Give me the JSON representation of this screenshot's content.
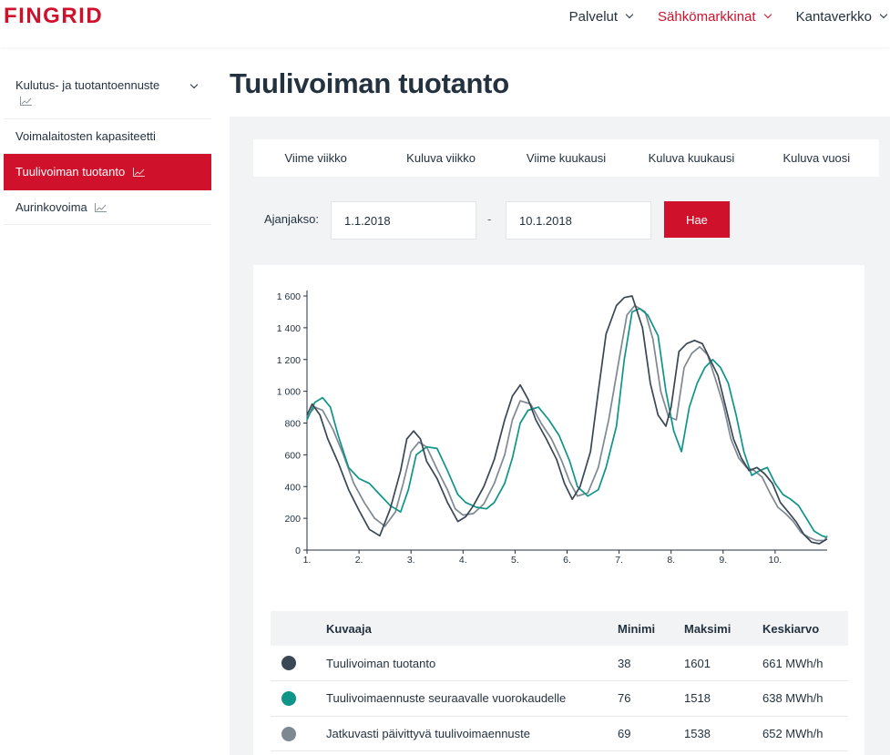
{
  "header": {
    "logo": "FINGRID",
    "nav": [
      {
        "label": "Palvelut",
        "active": false
      },
      {
        "label": "Sähkömarkkinat",
        "active": true
      },
      {
        "label": "Kantaverkko",
        "active": false
      }
    ]
  },
  "sidebar": {
    "items": [
      {
        "label": "Kulutus- ja tuotantoennuste",
        "icon": "trend-icon",
        "expandable": true
      },
      {
        "label": "Voimalaitosten kapasiteetti"
      },
      {
        "label": "Tuulivoiman tuotanto",
        "icon": "trend-icon",
        "active": true
      },
      {
        "label": "Aurinkovoima",
        "icon": "trend-icon"
      }
    ]
  },
  "page": {
    "title": "Tuulivoiman tuotanto"
  },
  "tabs": [
    "Viime viikko",
    "Kuluva viikko",
    "Viime kuukausi",
    "Kuluva kuukausi",
    "Kuluva vuosi"
  ],
  "period": {
    "label": "Ajanjakso:",
    "start": "1.1.2018",
    "end": "10.1.2018",
    "separator": "-",
    "button": "Hae"
  },
  "chart_data": {
    "type": "line",
    "x_unit": "days",
    "xlim": [
      1,
      11
    ],
    "ylim": [
      0,
      1600
    ],
    "yticks": [
      0,
      200,
      400,
      600,
      800,
      1000,
      1200,
      1400,
      1600
    ],
    "ytick_labels": [
      "0",
      "200",
      "400",
      "600",
      "800",
      "1 000",
      "1 200",
      "1 400",
      "1 600"
    ],
    "xticks": [
      1,
      2,
      3,
      4,
      5,
      6,
      7,
      8,
      9,
      10
    ],
    "xtick_labels": [
      "1.",
      "2.",
      "3.",
      "4.",
      "5.",
      "6.",
      "7.",
      "8.",
      "9.",
      "10."
    ],
    "grid": false,
    "series": [
      {
        "name": "Tuulivoiman tuotanto",
        "color": "#3a4754",
        "x": [
          1.0,
          1.1,
          1.25,
          1.4,
          1.6,
          1.8,
          2.0,
          2.2,
          2.4,
          2.6,
          2.8,
          2.92,
          3.05,
          3.18,
          3.3,
          3.5,
          3.7,
          3.9,
          4.05,
          4.2,
          4.4,
          4.6,
          4.8,
          4.95,
          5.1,
          5.25,
          5.4,
          5.6,
          5.8,
          5.95,
          6.1,
          6.25,
          6.45,
          6.6,
          6.75,
          6.95,
          7.1,
          7.25,
          7.45,
          7.6,
          7.75,
          7.9,
          8.0,
          8.15,
          8.3,
          8.45,
          8.6,
          8.75,
          8.9,
          9.05,
          9.2,
          9.35,
          9.5,
          9.65,
          9.8,
          9.95,
          10.1,
          10.25,
          10.4,
          10.55,
          10.7,
          10.85,
          11.0
        ],
        "values": [
          850,
          920,
          850,
          700,
          550,
          380,
          250,
          130,
          90,
          260,
          500,
          700,
          750,
          700,
          560,
          450,
          300,
          180,
          210,
          280,
          400,
          570,
          820,
          970,
          1040,
          950,
          820,
          700,
          570,
          420,
          320,
          400,
          620,
          1000,
          1360,
          1540,
          1590,
          1600,
          1400,
          1050,
          850,
          780,
          900,
          1250,
          1300,
          1320,
          1300,
          1200,
          1100,
          900,
          700,
          580,
          500,
          520,
          480,
          420,
          300,
          240,
          180,
          100,
          50,
          40,
          70
        ]
      },
      {
        "name": "Tuulivoimaennuste seuraavalle vuorokaudelle",
        "color": "#0f9488",
        "x": [
          1.0,
          1.15,
          1.3,
          1.45,
          1.6,
          1.8,
          2.0,
          2.2,
          2.4,
          2.6,
          2.8,
          2.95,
          3.1,
          3.3,
          3.5,
          3.7,
          3.9,
          4.05,
          4.25,
          4.45,
          4.6,
          4.8,
          4.95,
          5.1,
          5.25,
          5.45,
          5.65,
          5.85,
          6.05,
          6.2,
          6.4,
          6.6,
          6.75,
          6.95,
          7.1,
          7.25,
          7.4,
          7.55,
          7.75,
          7.9,
          8.05,
          8.2,
          8.35,
          8.5,
          8.65,
          8.8,
          8.95,
          9.1,
          9.25,
          9.4,
          9.55,
          9.7,
          9.85,
          10.0,
          10.15,
          10.3,
          10.45,
          10.6,
          10.75,
          10.9,
          11.0
        ],
        "values": [
          820,
          930,
          960,
          900,
          720,
          520,
          450,
          420,
          350,
          280,
          240,
          380,
          600,
          650,
          640,
          500,
          350,
          300,
          270,
          260,
          300,
          420,
          580,
          800,
          880,
          900,
          820,
          720,
          560,
          400,
          340,
          380,
          520,
          780,
          1200,
          1500,
          1520,
          1480,
          1350,
          1000,
          750,
          620,
          900,
          1050,
          1150,
          1200,
          1150,
          1050,
          850,
          620,
          470,
          500,
          520,
          420,
          350,
          320,
          280,
          200,
          120,
          90,
          80
        ]
      },
      {
        "name": "Jatkuvasti päivittyvä tuulivoimaennuste",
        "color": "#7e8891",
        "x": [
          1.0,
          1.15,
          1.3,
          1.5,
          1.7,
          1.9,
          2.1,
          2.3,
          2.5,
          2.7,
          2.85,
          3.0,
          3.15,
          3.3,
          3.5,
          3.7,
          3.85,
          4.0,
          4.2,
          4.4,
          4.6,
          4.8,
          4.95,
          5.1,
          5.3,
          5.5,
          5.7,
          5.9,
          6.05,
          6.2,
          6.4,
          6.6,
          6.8,
          7.0,
          7.15,
          7.3,
          7.5,
          7.65,
          7.8,
          7.95,
          8.1,
          8.25,
          8.4,
          8.55,
          8.7,
          8.85,
          9.0,
          9.15,
          9.3,
          9.45,
          9.6,
          9.75,
          9.9,
          10.05,
          10.2,
          10.35,
          10.5,
          10.65,
          10.8,
          10.95,
          11.0
        ],
        "values": [
          840,
          900,
          880,
          760,
          600,
          420,
          300,
          200,
          150,
          240,
          420,
          620,
          680,
          650,
          510,
          380,
          260,
          220,
          230,
          290,
          420,
          600,
          820,
          940,
          920,
          800,
          700,
          560,
          430,
          340,
          360,
          520,
          820,
          1200,
          1480,
          1540,
          1500,
          1330,
          1000,
          840,
          820,
          1150,
          1240,
          1280,
          1230,
          1080,
          920,
          700,
          580,
          520,
          500,
          460,
          360,
          270,
          230,
          180,
          110,
          80,
          60,
          60,
          90
        ]
      }
    ]
  },
  "table": {
    "headers": [
      "",
      "Kuvaaja",
      "Minimi",
      "Maksimi",
      "Keskiarvo"
    ],
    "rows": [
      {
        "color": "#3a4754",
        "name": "Tuulivoiman tuotanto",
        "min": "38",
        "max": "1601",
        "avg": "661 MWh/h"
      },
      {
        "color": "#0f9488",
        "name": "Tuulivoimaennuste seuraavalle vuorokaudelle",
        "min": "76",
        "max": "1518",
        "avg": "638 MWh/h"
      },
      {
        "color": "#7e8891",
        "name": "Jatkuvasti päivittyvä tuulivoimaennuste",
        "min": "69",
        "max": "1538",
        "avg": "652 MWh/h"
      }
    ]
  }
}
